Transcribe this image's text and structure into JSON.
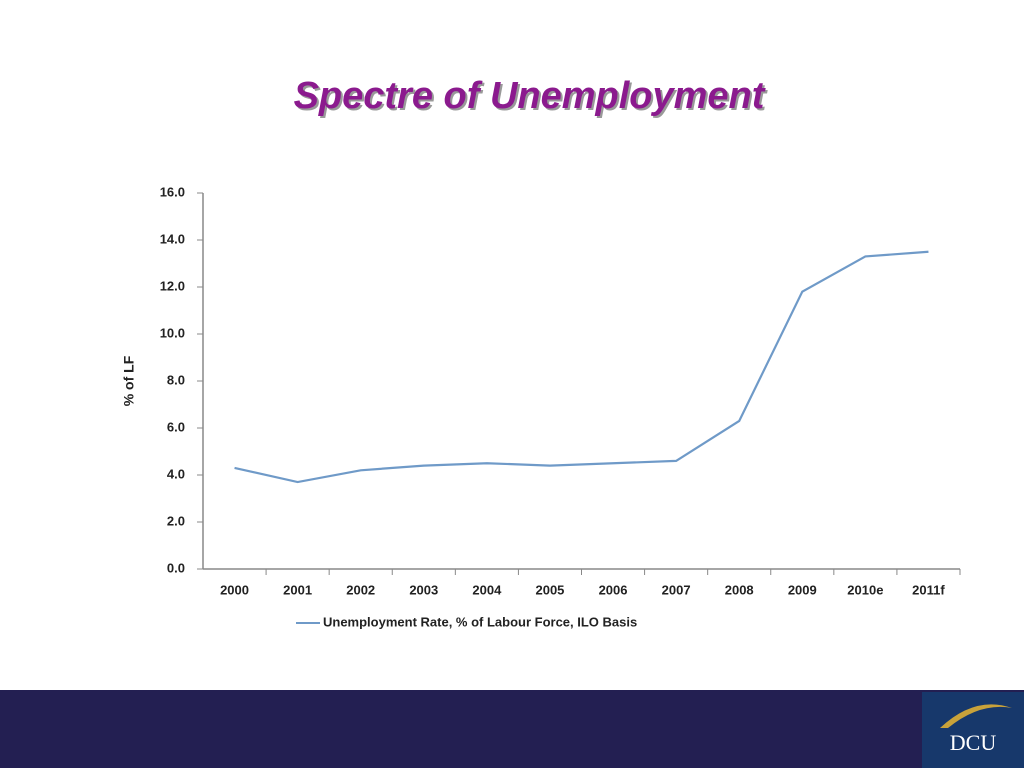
{
  "title": "Spectre of Unemployment",
  "chart_data": {
    "type": "line",
    "ylabel": "% of LF",
    "categories": [
      "2000",
      "2001",
      "2002",
      "2003",
      "2004",
      "2005",
      "2006",
      "2007",
      "2008",
      "2009",
      "2010e",
      "2011f"
    ],
    "series": [
      {
        "name": "Unemployment Rate, % of Labour Force, ILO Basis",
        "color": "#6f9ac8",
        "values": [
          4.3,
          3.7,
          4.2,
          4.4,
          4.5,
          4.4,
          4.5,
          4.6,
          6.3,
          11.8,
          13.3,
          13.5
        ]
      }
    ],
    "ylim": [
      0,
      16
    ],
    "yticks": [
      {
        "value": 0,
        "label": "0.0"
      },
      {
        "value": 2,
        "label": "2.0"
      },
      {
        "value": 4,
        "label": "4.0"
      },
      {
        "value": 6,
        "label": "6.0"
      },
      {
        "value": 8,
        "label": "8.0"
      },
      {
        "value": 10,
        "label": "10.0"
      },
      {
        "value": 12,
        "label": "12.0"
      },
      {
        "value": 14,
        "label": "14.0"
      },
      {
        "value": 16,
        "label": "16.0"
      }
    ],
    "grid": false
  },
  "footer": {
    "logo": "DCU"
  }
}
